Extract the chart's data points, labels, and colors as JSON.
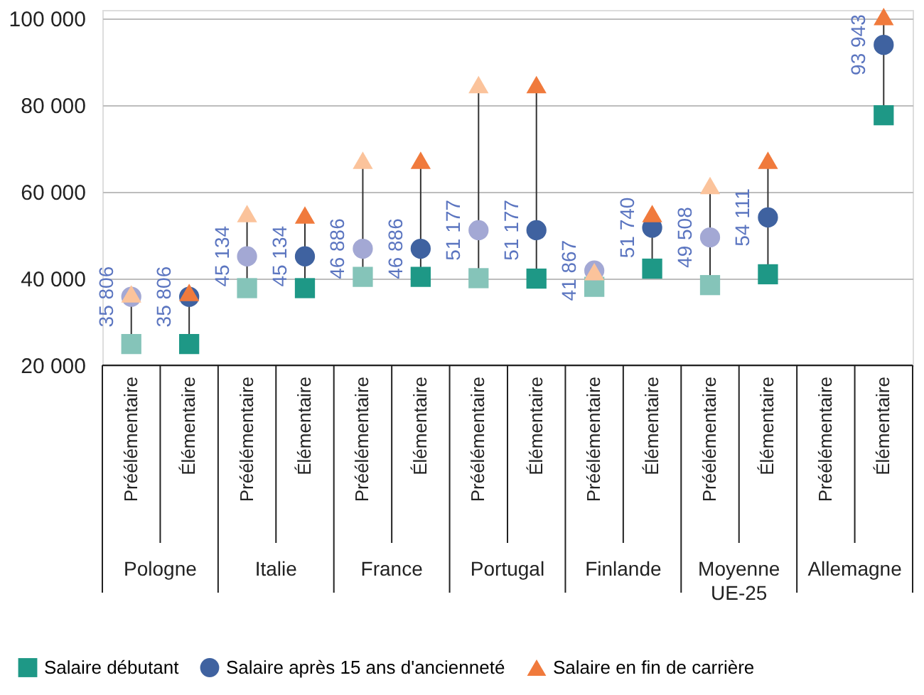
{
  "chart_data": {
    "type": "scatter",
    "categories": [
      "Préélémentaire",
      "Élémentaire",
      "Préélémentaire",
      "Élémentaire",
      "Préélémentaire",
      "Élémentaire",
      "Préélémentaire",
      "Élémentaire",
      "Préélémentaire",
      "Élémentaire",
      "Préélémentaire",
      "Élémentaire",
      "Préélémentaire",
      "Élémentaire"
    ],
    "annotations": [
      "Pologne",
      "Italie",
      "France",
      "Portugal",
      "Finlande",
      "Moyenne UE-25",
      "Allemagne"
    ],
    "series": [
      {
        "name": "Salaire débutant",
        "color": "#1e9886",
        "marker": "square",
        "colors": [
          "#85c4b9",
          "#1e9886",
          "#85c4b9",
          "#1e9886",
          "#85c4b9",
          "#1e9886",
          "#85c4b9",
          "#1e9886",
          "#85c4b9",
          "#1e9886",
          "#85c4b9",
          "#1e9886",
          "#85c4b9",
          "#1e9886"
        ],
        "values": [
          24900,
          24900,
          37800,
          37800,
          40400,
          40400,
          40100,
          40000,
          38100,
          42300,
          38500,
          41000,
          null,
          77700
        ]
      },
      {
        "name": "Salaire après 15 ans d'ancienneté",
        "color": "#3f62a0",
        "marker": "circle",
        "colors": [
          "#a3a8d4",
          "#3f62a0",
          "#a3a8d4",
          "#3f62a0",
          "#a3a8d4",
          "#3f62a0",
          "#a3a8d4",
          "#3f62a0",
          "#a3a8d4",
          "#3f62a0",
          "#a3a8d4",
          "#3f62a0",
          "#a3a8d4",
          "#3f62a0"
        ],
        "values": [
          35806,
          35806,
          45134,
          45134,
          46886,
          46886,
          51177,
          51177,
          41867,
          51740,
          49508,
          54111,
          null,
          93943
        ],
        "value_labels": [
          "35 806",
          "35 806",
          "45 134",
          "45 134",
          "46 886",
          "46 886",
          "51 177",
          "51 177",
          "41 867",
          "51 740",
          "49 508",
          "54 111",
          null,
          "93 943"
        ]
      },
      {
        "name": "Salaire en fin de carrière",
        "color": "#f07a3c",
        "marker": "triangle",
        "colors": [
          "#fbc39b",
          "#f07a3c",
          "#fbc39b",
          "#f07a3c",
          "#fbc39b",
          "#f07a3c",
          "#fbc39b",
          "#f07a3c",
          "#fbc39b",
          "#f07a3c",
          "#fbc39b",
          "#f07a3c",
          "#fbc39b",
          "#f07a3c"
        ],
        "values": [
          36500,
          36800,
          55000,
          54700,
          67300,
          67300,
          84800,
          84800,
          41600,
          55000,
          61500,
          67300,
          null,
          100500
        ]
      }
    ],
    "ylim": [
      20000,
      102000
    ],
    "yticks": [
      {
        "value": 20000,
        "label": "20 000"
      },
      {
        "value": 40000,
        "label": "40 000"
      },
      {
        "value": 60000,
        "label": "60 000"
      },
      {
        "value": 80000,
        "label": "80 000"
      },
      {
        "value": 100000,
        "label": "100 000"
      }
    ],
    "grid": "y",
    "legend": "bottom"
  }
}
